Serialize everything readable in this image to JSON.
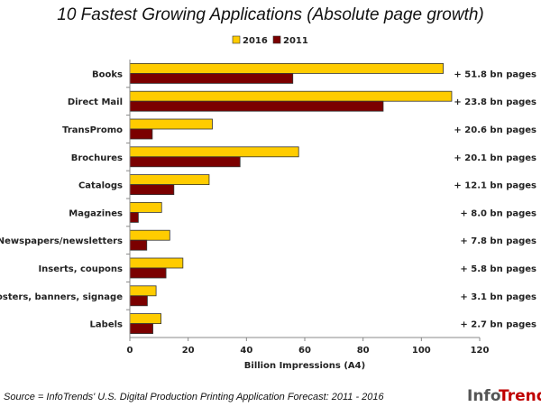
{
  "chart_data": {
    "type": "bar",
    "orientation": "horizontal",
    "title": "10 Fastest Growing Applications (Absolute page growth)",
    "xlabel": "Billion Impressions (A4)",
    "ylabel": "",
    "xlim": [
      0,
      120
    ],
    "xticks": [
      0,
      20,
      40,
      60,
      80,
      100,
      120
    ],
    "grid": false,
    "legend_position": "top",
    "categories": [
      "Books",
      "Direct Mail",
      "TransPromo",
      "Brochures",
      "Catalogs",
      "Magazines",
      "Newspapers/newsletters",
      "Inserts, coupons",
      "Posters, banners, signage",
      "Labels"
    ],
    "series": [
      {
        "name": "2016",
        "color": "#FFCC00",
        "values": [
          107.5,
          110.4,
          28.3,
          57.9,
          27.2,
          10.9,
          13.7,
          18.2,
          9.0,
          10.7
        ]
      },
      {
        "name": "2011",
        "color": "#7B0000",
        "values": [
          55.9,
          86.9,
          7.7,
          37.8,
          15.1,
          2.9,
          5.8,
          12.4,
          6.0,
          7.9
        ]
      }
    ],
    "annotations": [
      "+ 51.8 bn pages",
      "+ 23.8 bn pages",
      "+ 20.6 bn pages",
      "+ 20.1 bn pages",
      "+ 12.1 bn pages",
      "+ 8.0 bn pages",
      "+ 7.8 bn pages",
      "+ 5.8 bn pages",
      "+ 3.1 bn pages",
      "+ 2.7 bn pages"
    ]
  },
  "source": "Source = InfoTrends' U.S. Digital Production Printing Application Forecast: 2011 - 2016",
  "logo": {
    "text_a": "Info",
    "text_b": "Trends"
  }
}
